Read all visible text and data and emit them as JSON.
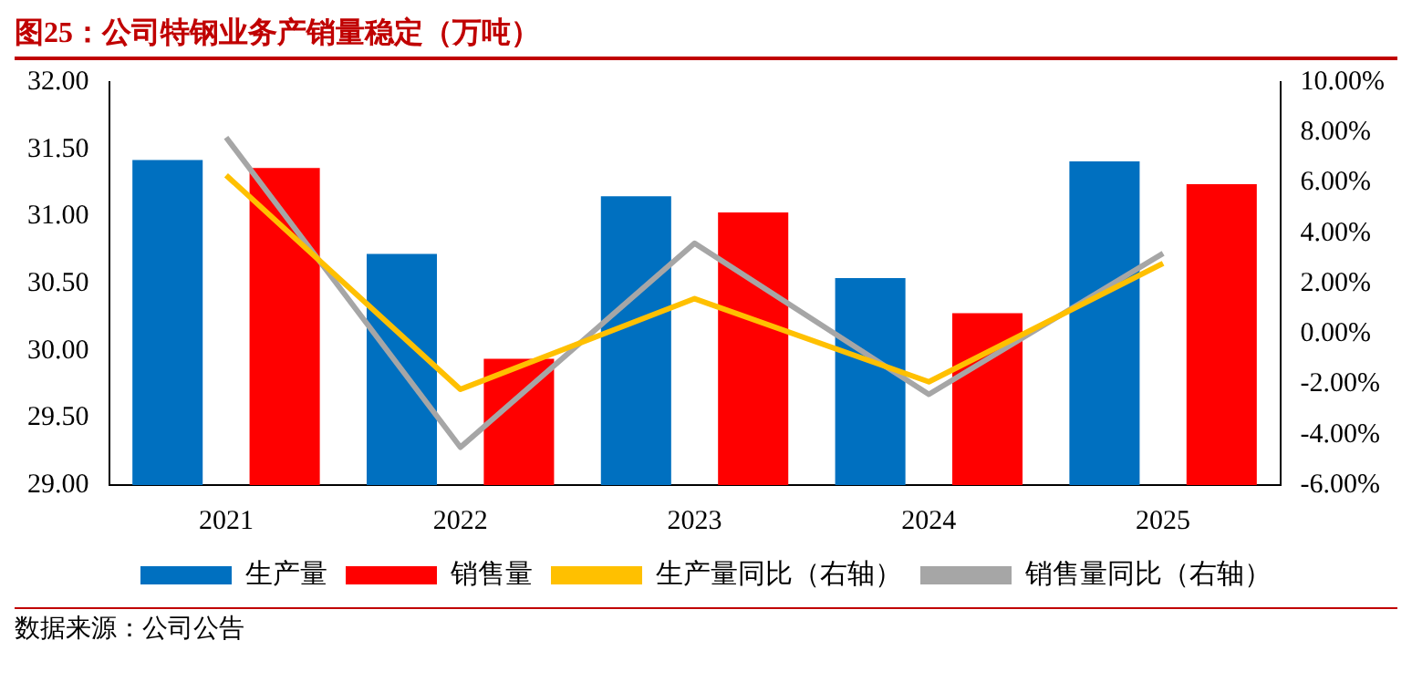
{
  "chart_data": {
    "type": "bar",
    "title": "图25：公司特钢业务产销量稳定（万吨）",
    "categories": [
      "2021",
      "2022",
      "2023",
      "2024",
      "2025"
    ],
    "series": [
      {
        "name": "生产量",
        "color": "#0070c0",
        "values": [
          31.42,
          30.72,
          31.15,
          30.54,
          31.41
        ]
      },
      {
        "name": "销售量",
        "color": "#ff0000",
        "values": [
          31.36,
          29.94,
          31.03,
          30.28,
          31.24
        ]
      },
      {
        "name": "生产量同比（右轴）",
        "type": "line",
        "axis": "y2",
        "color": "#ffc000",
        "values": [
          6.3,
          -2.2,
          1.4,
          -1.9,
          2.8
        ]
      },
      {
        "name": "销售量同比（右轴）",
        "type": "line",
        "axis": "y2",
        "color": "#a6a6a6",
        "values": [
          7.8,
          -4.5,
          3.6,
          -2.4,
          3.2
        ]
      }
    ],
    "ylim": [
      29,
      32
    ],
    "yticks": [
      {
        "value": 29,
        "label": "29.00"
      },
      {
        "value": 29.5,
        "label": "29.50"
      },
      {
        "value": 30,
        "label": "30.00"
      },
      {
        "value": 30.5,
        "label": "30.50"
      },
      {
        "value": 31,
        "label": "31.00"
      },
      {
        "value": 31.5,
        "label": "31.50"
      },
      {
        "value": 32,
        "label": "32.00"
      }
    ],
    "y2lim": [
      -6,
      10
    ],
    "y2ticks": [
      {
        "value": -6,
        "label": "-6.00%"
      },
      {
        "value": -4,
        "label": "-4.00%"
      },
      {
        "value": -2,
        "label": "-2.00%"
      },
      {
        "value": 0,
        "label": "0.00%"
      },
      {
        "value": 2,
        "label": "2.00%"
      },
      {
        "value": 4,
        "label": "4.00%"
      },
      {
        "value": 6,
        "label": "6.00%"
      },
      {
        "value": 8,
        "label": "8.00%"
      },
      {
        "value": 10,
        "label": "10.00%"
      }
    ],
    "grid": false,
    "legend": "bottom",
    "marker": "none",
    "annotations": [
      "数据来源：公司公告"
    ]
  }
}
